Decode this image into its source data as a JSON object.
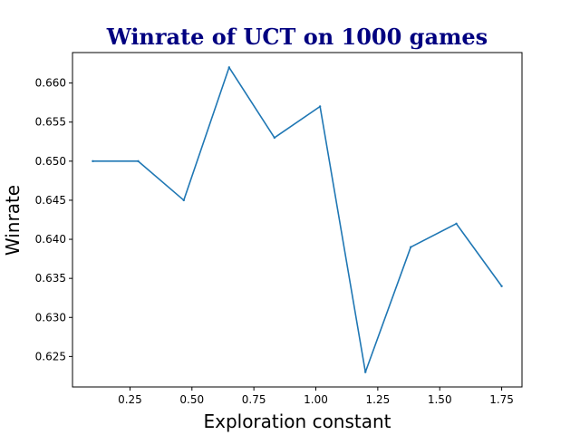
{
  "chart_data": {
    "type": "line",
    "title": "Winrate of UCT on 1000 games",
    "title_color": "#000080",
    "xlabel": "Exploration constant",
    "ylabel": "Winrate",
    "line_color": "#1f77b4",
    "grid": false,
    "xlim": [
      0.018,
      1.832
    ],
    "ylim": [
      0.6211,
      0.6639
    ],
    "xticks": [
      0.25,
      0.5,
      0.75,
      1.0,
      1.25,
      1.5,
      1.75
    ],
    "xtick_labels": [
      "0.25",
      "0.50",
      "0.75",
      "1.00",
      "1.25",
      "1.50",
      "1.75"
    ],
    "yticks": [
      0.625,
      0.63,
      0.635,
      0.64,
      0.645,
      0.65,
      0.655,
      0.66
    ],
    "ytick_labels": [
      "0.625",
      "0.630",
      "0.635",
      "0.640",
      "0.645",
      "0.650",
      "0.655",
      "0.660"
    ],
    "series": [
      {
        "x": [
          0.1,
          0.283,
          0.467,
          0.65,
          0.833,
          1.017,
          1.2,
          1.383,
          1.567,
          1.75
        ],
        "y": [
          0.65,
          0.65,
          0.645,
          0.662,
          0.653,
          0.657,
          0.623,
          0.639,
          0.642,
          0.634
        ]
      }
    ]
  }
}
